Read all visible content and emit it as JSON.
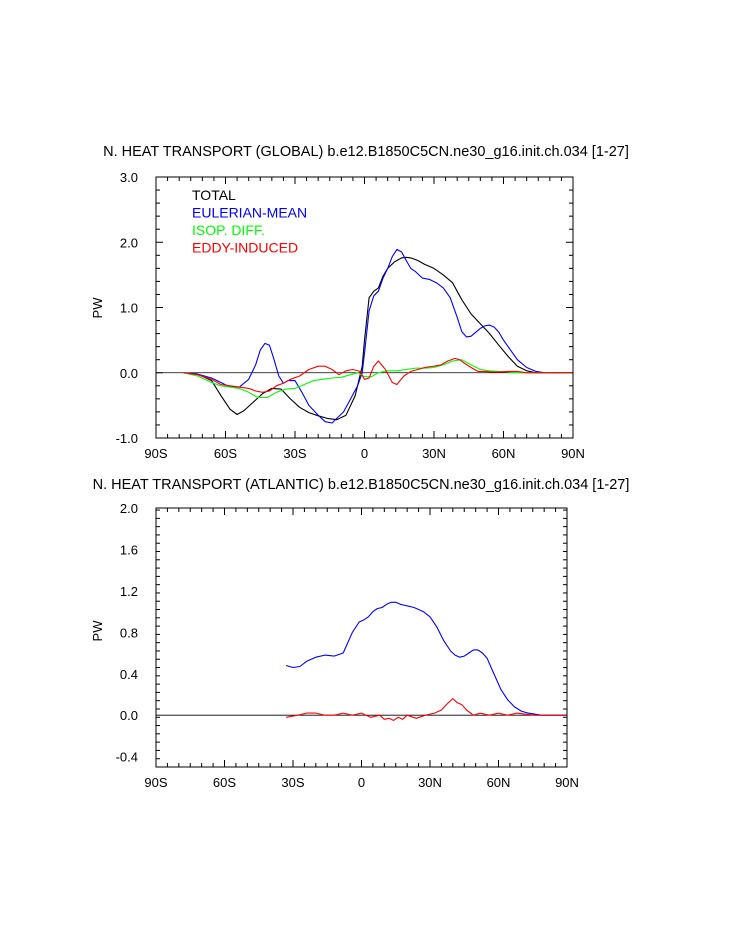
{
  "chart_data": [
    {
      "type": "line",
      "title": "N. HEAT TRANSPORT (GLOBAL) b.e12.B1850C5CN.ne30_g16.init.ch.034 [1-27]",
      "xlabel": "",
      "ylabel": "PW",
      "xlim": [
        -90,
        90
      ],
      "ylim": [
        -1.0,
        3.0
      ],
      "x_ticks": [
        -90,
        -60,
        -30,
        0,
        30,
        60,
        90
      ],
      "x_tick_labels": [
        "90S",
        "60S",
        "30S",
        "0",
        "30N",
        "60N",
        "90N"
      ],
      "y_ticks": [
        -1.0,
        0.0,
        1.0,
        2.0,
        3.0
      ],
      "y_tick_labels": [
        "-1.0",
        "0.0",
        "1.0",
        "2.0",
        "3.0"
      ],
      "legend_position": "top-left",
      "zero_line": true,
      "series": [
        {
          "name": "TOTAL",
          "color": "#000000",
          "x": [
            -78,
            -72,
            -66,
            -62,
            -58,
            -55,
            -52,
            -48,
            -44,
            -40,
            -36,
            -32,
            -28,
            -24,
            -20,
            -16,
            -12,
            -8,
            -4,
            -1,
            0,
            2,
            4,
            6,
            8,
            10,
            13,
            16,
            18,
            20,
            23,
            26,
            30,
            34,
            38,
            42,
            46,
            50,
            54,
            58,
            62,
            66,
            70,
            74,
            78,
            82,
            86,
            90
          ],
          "y": [
            0.0,
            -0.02,
            -0.12,
            -0.35,
            -0.56,
            -0.64,
            -0.58,
            -0.45,
            -0.32,
            -0.24,
            -0.25,
            -0.4,
            -0.53,
            -0.61,
            -0.66,
            -0.7,
            -0.72,
            -0.65,
            -0.35,
            0.1,
            0.5,
            1.15,
            1.25,
            1.3,
            1.48,
            1.6,
            1.7,
            1.76,
            1.77,
            1.76,
            1.72,
            1.66,
            1.6,
            1.5,
            1.38,
            1.12,
            0.9,
            0.75,
            0.6,
            0.42,
            0.25,
            0.1,
            0.03,
            0.0,
            0.0,
            0.0,
            0.0,
            0.0
          ]
        },
        {
          "name": "EULERIAN-MEAN",
          "color": "#0000ff",
          "x": [
            -78,
            -72,
            -66,
            -62,
            -58,
            -54,
            -50,
            -47,
            -45,
            -43,
            -41,
            -39,
            -37,
            -35,
            -33,
            -30,
            -27,
            -24,
            -20,
            -17,
            -14,
            -12,
            -9,
            -6,
            -3,
            -1,
            0,
            2,
            4,
            6,
            8,
            10,
            12,
            14,
            16,
            18,
            20,
            22,
            25,
            28,
            31,
            34,
            37,
            40,
            42,
            44,
            46,
            48,
            50,
            52,
            54,
            56,
            58,
            60,
            63,
            66,
            70,
            74,
            78,
            82,
            86,
            90
          ],
          "y": [
            0.0,
            -0.02,
            -0.08,
            -0.15,
            -0.22,
            -0.22,
            -0.1,
            0.12,
            0.35,
            0.45,
            0.42,
            0.2,
            -0.05,
            -0.16,
            -0.12,
            -0.12,
            -0.3,
            -0.5,
            -0.65,
            -0.75,
            -0.77,
            -0.7,
            -0.6,
            -0.4,
            -0.2,
            0.0,
            0.3,
            0.95,
            1.18,
            1.25,
            1.45,
            1.6,
            1.78,
            1.89,
            1.85,
            1.72,
            1.6,
            1.55,
            1.45,
            1.43,
            1.38,
            1.3,
            1.15,
            0.85,
            0.63,
            0.55,
            0.56,
            0.62,
            0.68,
            0.72,
            0.73,
            0.7,
            0.62,
            0.5,
            0.35,
            0.2,
            0.08,
            0.02,
            0.0,
            0.0,
            0.0,
            0.0
          ]
        },
        {
          "name": "ISOP. DIFF.",
          "color": "#00ff00",
          "x": [
            -78,
            -72,
            -66,
            -62,
            -58,
            -54,
            -50,
            -46,
            -42,
            -38,
            -34,
            -30,
            -26,
            -22,
            -18,
            -14,
            -10,
            -6,
            -3,
            0,
            3,
            6,
            10,
            14,
            18,
            22,
            26,
            30,
            34,
            38,
            42,
            46,
            50,
            54,
            58,
            62,
            66,
            70,
            74,
            78,
            82,
            86,
            90
          ],
          "y": [
            0.0,
            -0.05,
            -0.15,
            -0.2,
            -0.22,
            -0.24,
            -0.3,
            -0.38,
            -0.38,
            -0.3,
            -0.25,
            -0.24,
            -0.18,
            -0.12,
            -0.1,
            -0.08,
            -0.07,
            -0.03,
            0.0,
            -0.06,
            -0.06,
            0.0,
            0.03,
            0.03,
            0.05,
            0.07,
            0.07,
            0.08,
            0.12,
            0.18,
            0.2,
            0.12,
            0.05,
            0.03,
            0.02,
            0.01,
            0.0,
            0.0,
            0.0,
            0.0,
            0.0,
            0.0,
            0.0
          ]
        },
        {
          "name": "EDDY-INDUCED",
          "color": "#ff0000",
          "x": [
            -78,
            -72,
            -66,
            -62,
            -58,
            -54,
            -50,
            -47,
            -44,
            -41,
            -38,
            -35,
            -32,
            -28,
            -24,
            -20,
            -17,
            -14,
            -11,
            -8,
            -5,
            -2,
            0,
            2,
            4,
            6,
            9,
            12,
            14,
            17,
            20,
            23,
            26,
            30,
            33,
            36,
            39,
            41,
            43,
            46,
            49,
            52,
            55,
            58,
            62,
            66,
            70,
            74,
            78,
            82,
            86,
            90
          ],
          "y": [
            0.0,
            -0.03,
            -0.1,
            -0.18,
            -0.2,
            -0.22,
            -0.24,
            -0.28,
            -0.3,
            -0.28,
            -0.2,
            -0.16,
            -0.1,
            -0.05,
            0.05,
            0.1,
            0.1,
            0.05,
            -0.03,
            0.03,
            0.05,
            0.02,
            -0.1,
            -0.08,
            0.1,
            0.18,
            0.05,
            -0.15,
            -0.18,
            -0.05,
            0.02,
            0.05,
            0.08,
            0.1,
            0.12,
            0.18,
            0.22,
            0.2,
            0.15,
            0.08,
            0.02,
            0.02,
            0.01,
            0.01,
            0.02,
            0.02,
            0.0,
            0.0,
            0.0,
            0.0,
            0.0,
            0.0
          ]
        }
      ]
    },
    {
      "type": "line",
      "title": "N. HEAT TRANSPORT (ATLANTIC) b.e12.B1850C5CN.ne30_g16.init.ch.034 [1-27]",
      "xlabel": "",
      "ylabel": "PW",
      "xlim": [
        -90,
        90
      ],
      "ylim": [
        -0.5,
        2.0
      ],
      "x_ticks": [
        -90,
        -60,
        -30,
        0,
        30,
        60,
        90
      ],
      "x_tick_labels": [
        "90S",
        "60S",
        "30S",
        "0",
        "30N",
        "60N",
        "90N"
      ],
      "y_ticks": [
        -0.4,
        0.0,
        0.4,
        0.8,
        1.2,
        1.6,
        2.0
      ],
      "y_tick_labels": [
        "-0.4",
        "0.0",
        "0.4",
        "0.8",
        "1.2",
        "1.6",
        "2.0"
      ],
      "zero_line": true,
      "series": [
        {
          "name": "EULERIAN-MEAN",
          "color": "#0000ff",
          "x": [
            -33,
            -30,
            -27,
            -24,
            -20,
            -16,
            -12,
            -8,
            -4,
            -1,
            1,
            3,
            5,
            7,
            9,
            11,
            13,
            15,
            17,
            19,
            21,
            23,
            25,
            27,
            30,
            33,
            36,
            39,
            41,
            43,
            45,
            47,
            49,
            51,
            53,
            55,
            57,
            59,
            61,
            64,
            67,
            70,
            73,
            76,
            79,
            82,
            86,
            90
          ],
          "y": [
            0.48,
            0.46,
            0.47,
            0.52,
            0.56,
            0.58,
            0.57,
            0.6,
            0.8,
            0.9,
            0.92,
            0.95,
            1.0,
            1.03,
            1.04,
            1.07,
            1.09,
            1.09,
            1.07,
            1.06,
            1.05,
            1.04,
            1.02,
            1.0,
            0.95,
            0.85,
            0.72,
            0.62,
            0.58,
            0.56,
            0.57,
            0.6,
            0.63,
            0.63,
            0.6,
            0.55,
            0.45,
            0.35,
            0.25,
            0.15,
            0.08,
            0.04,
            0.02,
            0.01,
            0.0,
            0.0,
            0.0,
            0.0
          ]
        },
        {
          "name": "EDDY-INDUCED",
          "color": "#ff0000",
          "x": [
            -33,
            -28,
            -24,
            -20,
            -16,
            -12,
            -8,
            -4,
            0,
            4,
            8,
            10,
            12,
            14,
            16,
            18,
            20,
            24,
            28,
            32,
            35,
            38,
            40,
            42,
            44,
            46,
            49,
            52,
            56,
            60,
            64,
            68,
            72,
            76,
            80,
            84,
            88,
            90
          ],
          "y": [
            -0.02,
            0.0,
            0.02,
            0.02,
            0.0,
            0.0,
            0.02,
            0.0,
            0.02,
            -0.02,
            0.0,
            -0.04,
            -0.03,
            -0.05,
            -0.02,
            -0.04,
            0.0,
            -0.03,
            0.0,
            0.02,
            0.05,
            0.12,
            0.16,
            0.12,
            0.1,
            0.05,
            0.0,
            0.02,
            0.0,
            0.02,
            0.0,
            0.02,
            0.01,
            0.0,
            0.0,
            0.0,
            0.0,
            0.0
          ]
        }
      ]
    }
  ]
}
